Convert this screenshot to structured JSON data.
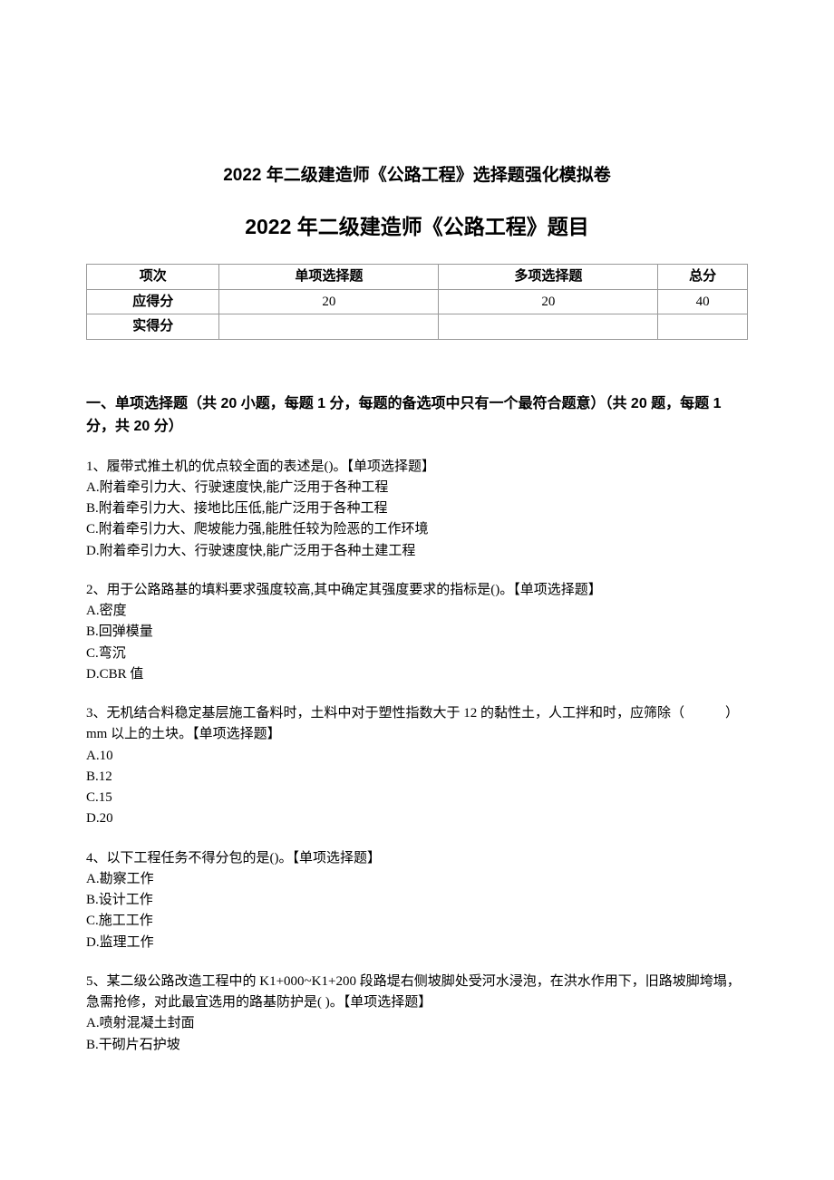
{
  "title1": "2022 年二级建造师《公路工程》选择题强化模拟卷",
  "title2": "2022 年二级建造师《公路工程》题目",
  "table": {
    "headers": [
      "项次",
      "单项选择题",
      "多项选择题",
      "总分"
    ],
    "rows": [
      {
        "label": "应得分",
        "cells": [
          "20",
          "20",
          "40"
        ]
      },
      {
        "label": "实得分",
        "cells": [
          "",
          "",
          ""
        ]
      }
    ]
  },
  "sectionHeader": "一、单项选择题（共 20 小题，每题 1 分，每题的备选项中只有一个最符合题意）（共 20 题，每题 1 分，共 20 分）",
  "questions": [
    {
      "stem": "1、履带式推土机的优点较全面的表述是()。【单项选择题】",
      "options": [
        "A.附着牵引力大、行驶速度快,能广泛用于各种工程",
        "B.附着牵引力大、接地比压低,能广泛用于各种工程",
        "C.附着牵引力大、爬坡能力强,能胜任较为险恶的工作环境",
        "D.附着牵引力大、行驶速度快,能广泛用于各种土建工程"
      ]
    },
    {
      "stem": "2、用于公路路基的填料要求强度较高,其中确定其强度要求的指标是()。【单项选择题】",
      "options": [
        "A.密度",
        "B.回弹模量",
        "C.弯沉",
        "D.CBR 值"
      ]
    },
    {
      "stem": "3、无机结合料稳定基层施工备料时，土料中对于塑性指数大于 12 的黏性土，人工拌和时，应筛除（　　　）mm 以上的土块。【单项选择题】",
      "options": [
        "A.10",
        "B.12",
        "C.15",
        "D.20"
      ]
    },
    {
      "stem": "4、以下工程任务不得分包的是()。【单项选择题】",
      "options": [
        "A.勘察工作",
        "B.设计工作",
        "C.施工工作",
        "D.监理工作"
      ]
    },
    {
      "stem": "5、某二级公路改造工程中的 K1+000~K1+200 段路堤右侧坡脚处受河水浸泡，在洪水作用下，旧路坡脚垮塌，急需抢修，对此最宜选用的路基防护是( )。【单项选择题】",
      "options": [
        "A.喷射混凝土封面",
        "B.干砌片石护坡"
      ]
    }
  ]
}
